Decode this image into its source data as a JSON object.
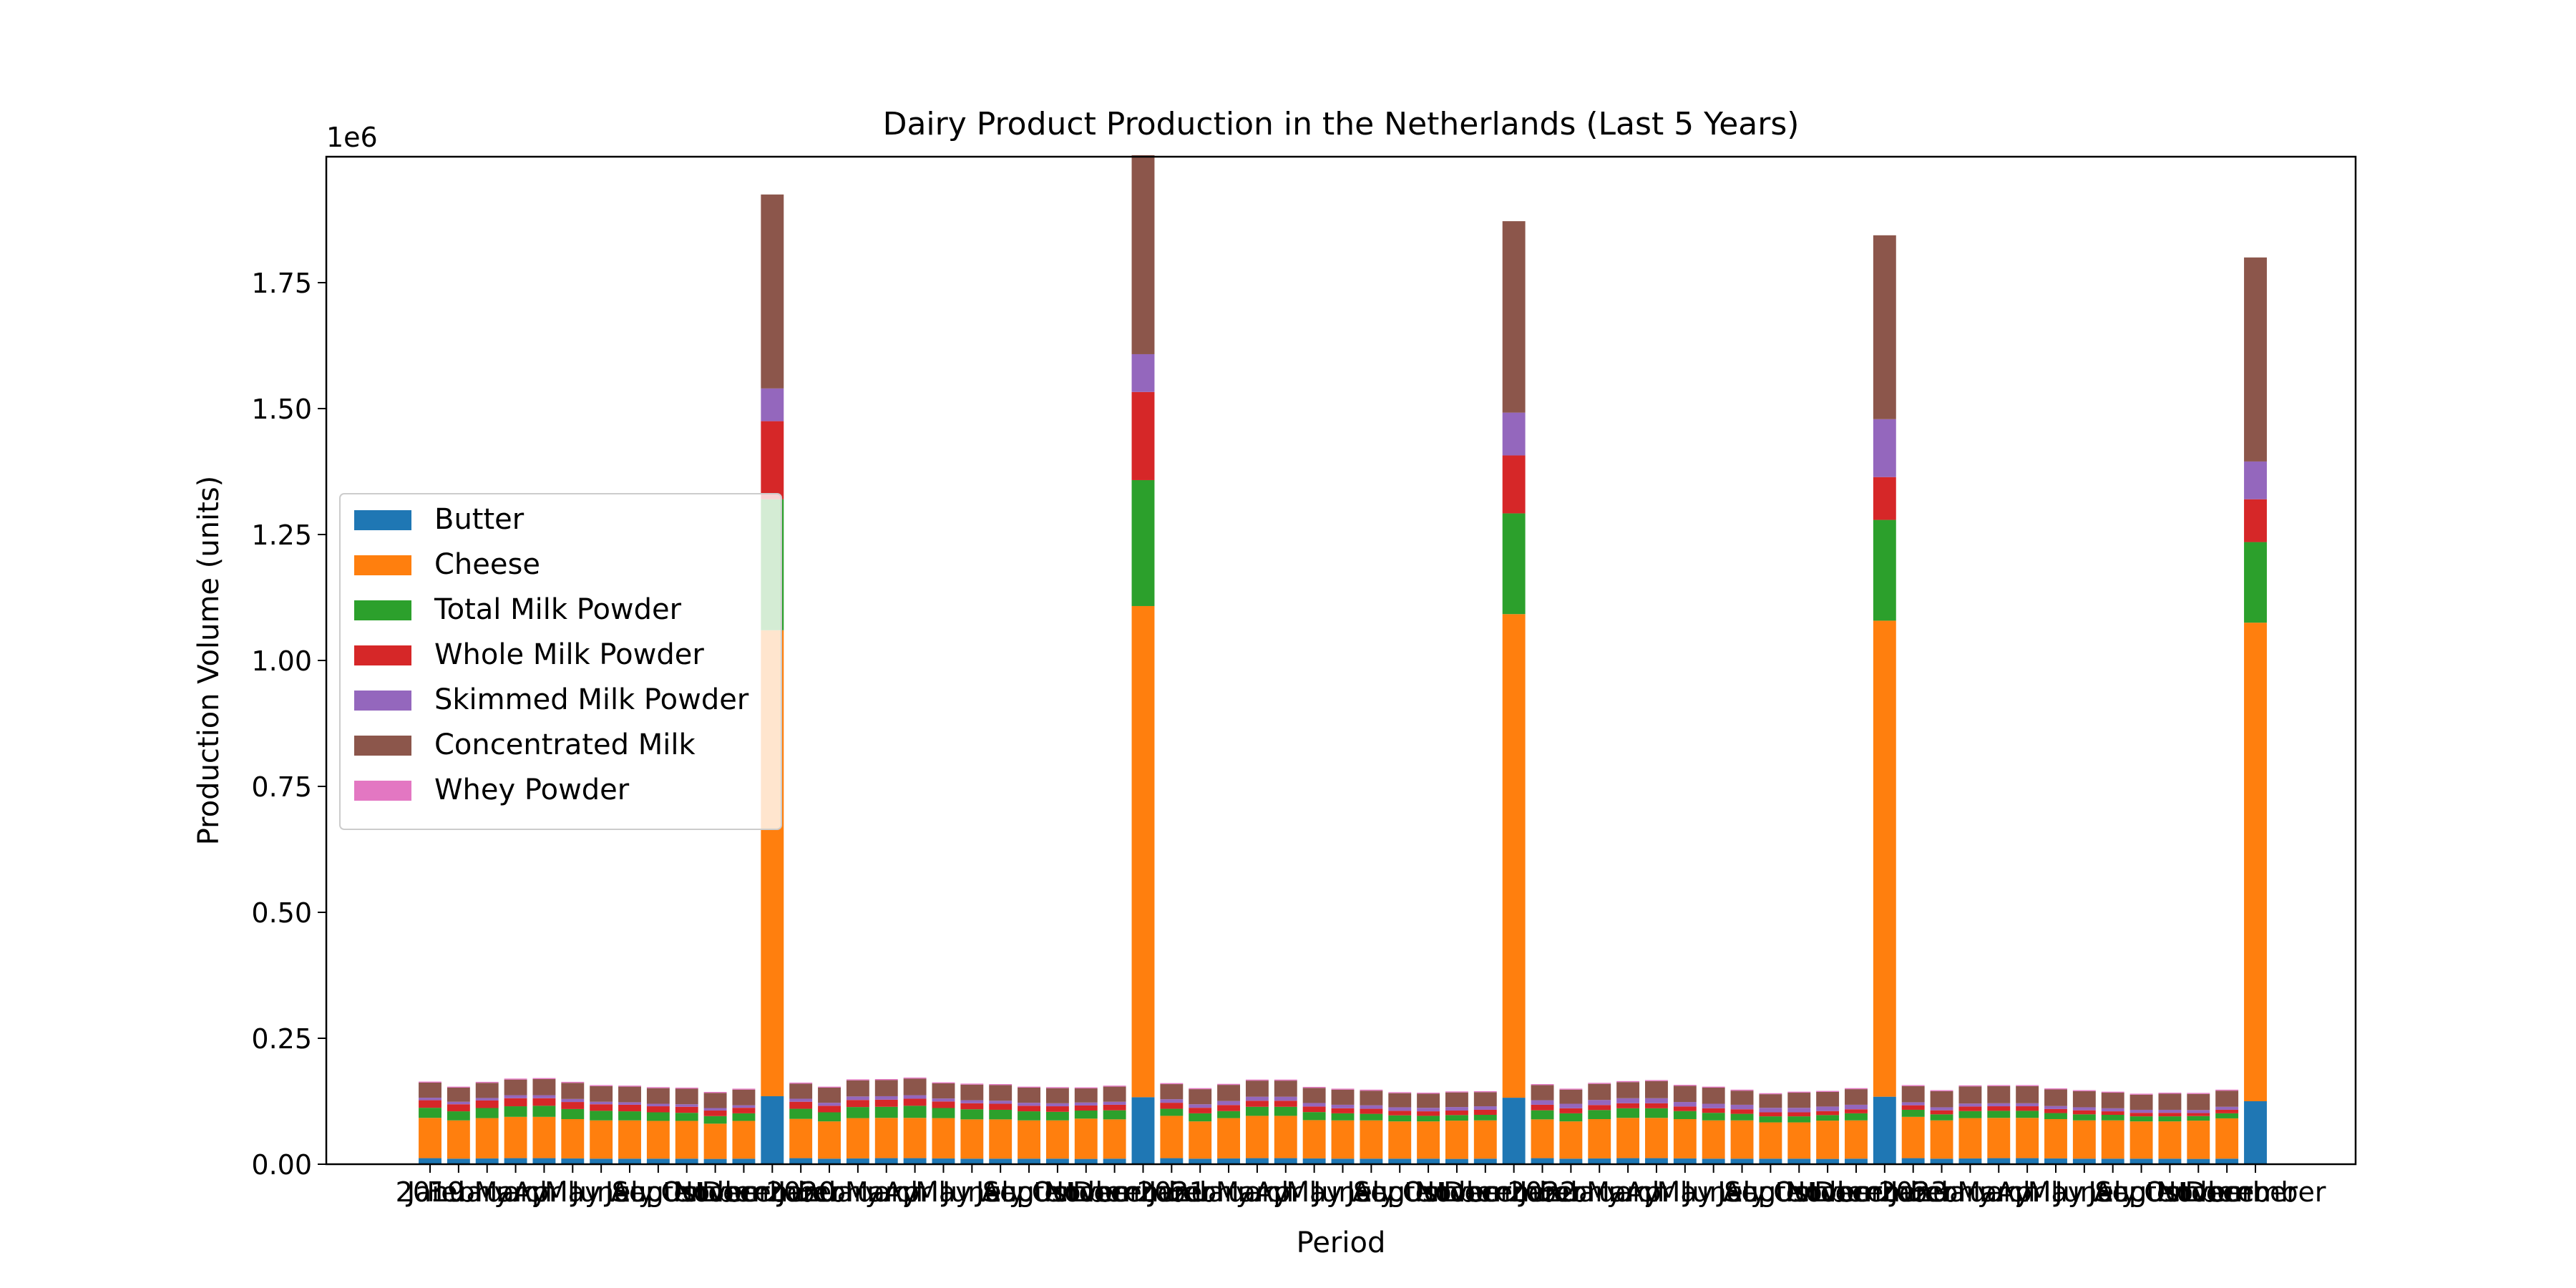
{
  "chart_data": {
    "type": "bar",
    "stacked": true,
    "title": "Dairy Product Production in the Netherlands (Last 5 Years)",
    "xlabel": "Period",
    "ylabel": "Production Volume (units)",
    "y_offset_label": "1e6",
    "ylim": [
      0,
      2000000
    ],
    "yticks": [
      0,
      250000,
      500000,
      750000,
      1000000,
      1250000,
      1500000,
      1750000
    ],
    "ytick_labels": [
      "0.00",
      "0.25",
      "0.50",
      "0.75",
      "1.00",
      "1.25",
      "1.50",
      "1.75"
    ],
    "xtick_labels": [
      "2019",
      "January",
      "February",
      "March",
      "April",
      "May",
      "June",
      "July",
      "August",
      "September",
      "October",
      "November",
      "December",
      "2020",
      "January",
      "February",
      "March",
      "April",
      "May",
      "June",
      "July",
      "August",
      "September",
      "October",
      "November",
      "December",
      "2021",
      "January",
      "February",
      "March",
      "April",
      "May",
      "June",
      "July",
      "August",
      "September",
      "October",
      "November",
      "December",
      "2022",
      "January",
      "February",
      "March",
      "April",
      "May",
      "June",
      "July",
      "August",
      "September",
      "October",
      "November",
      "December",
      "2023",
      "January",
      "February",
      "March",
      "April",
      "May",
      "June",
      "July",
      "August",
      "September",
      "October",
      "November",
      "December"
    ],
    "grid": false,
    "legend_position": "center-left",
    "series": [
      {
        "name": "Butter",
        "color": "#1f77b4",
        "values": [
          12000,
          11000,
          11500,
          12000,
          12000,
          11500,
          11000,
          11000,
          11000,
          11000,
          10500,
          11000,
          135000,
          12000,
          11000,
          11500,
          12000,
          12000,
          11500,
          11000,
          11000,
          11000,
          11000,
          10500,
          11000,
          133000,
          12000,
          11000,
          11500,
          12000,
          12000,
          11500,
          11000,
          11000,
          11000,
          11000,
          10500,
          11000,
          132000,
          12000,
          11000,
          11500,
          12000,
          12000,
          11500,
          11000,
          11000,
          11000,
          11000,
          10500,
          11000,
          134000,
          12000,
          11000,
          11500,
          12000,
          12000,
          11500,
          11000,
          11000,
          11000,
          11000,
          10500,
          11000,
          125000
        ]
      },
      {
        "name": "Cheese",
        "color": "#ff7f0e",
        "values": [
          80000,
          76000,
          80000,
          82000,
          82000,
          78000,
          76000,
          76000,
          75000,
          75000,
          70000,
          75000,
          925000,
          78000,
          74000,
          80000,
          80000,
          80000,
          80000,
          78000,
          78000,
          76000,
          76000,
          80000,
          78000,
          975000,
          84000,
          74000,
          80000,
          84000,
          84000,
          76000,
          76000,
          76000,
          74000,
          74000,
          76000,
          76000,
          960000,
          77000,
          74000,
          78000,
          80000,
          80000,
          78000,
          76000,
          76000,
          72000,
          72000,
          76000,
          76000,
          945000,
          82000,
          76000,
          80000,
          80000,
          80000,
          78000,
          76000,
          76000,
          74000,
          74000,
          76000,
          80000,
          950000
        ]
      },
      {
        "name": "Total Milk Powder",
        "color": "#2ca02c",
        "values": [
          20000,
          18000,
          20000,
          21000,
          22000,
          20000,
          19000,
          18000,
          17000,
          16000,
          15000,
          15000,
          260000,
          20000,
          18000,
          22000,
          22000,
          24000,
          20000,
          20000,
          19000,
          18000,
          17000,
          16000,
          18000,
          250000,
          14000,
          16000,
          14000,
          18000,
          18000,
          16000,
          14000,
          13000,
          12000,
          11000,
          11000,
          11000,
          200000,
          18000,
          16000,
          18000,
          19000,
          19000,
          16000,
          15000,
          13000,
          12000,
          12000,
          11000,
          14000,
          200000,
          14000,
          12000,
          14000,
          14000,
          14000,
          12000,
          12000,
          11000,
          10000,
          10000,
          9000,
          10000,
          160000
        ]
      },
      {
        "name": "Whole Milk Powder",
        "color": "#d62728",
        "values": [
          15000,
          14000,
          15000,
          16000,
          15000,
          14000,
          13000,
          13000,
          12000,
          12000,
          11000,
          11000,
          155000,
          14000,
          13000,
          14000,
          14000,
          14000,
          13000,
          12000,
          12000,
          11000,
          11000,
          10000,
          11000,
          175000,
          12000,
          11000,
          12000,
          12000,
          12000,
          11000,
          10000,
          10000,
          9000,
          9000,
          9000,
          10000,
          115000,
          11000,
          10000,
          10000,
          10000,
          10000,
          9000,
          9000,
          9000,
          8000,
          8000,
          8000,
          8000,
          85000,
          9000,
          8000,
          9000,
          9000,
          9000,
          8000,
          8000,
          7000,
          7000,
          7000,
          6000,
          7000,
          85000
        ]
      },
      {
        "name": "Skimmed Milk Powder",
        "color": "#9467bd",
        "values": [
          5000,
          5000,
          5000,
          6000,
          6000,
          6000,
          5000,
          5000,
          5000,
          5000,
          5000,
          5000,
          65000,
          6000,
          6000,
          7000,
          7000,
          7000,
          6000,
          6000,
          6000,
          6000,
          6000,
          6000,
          6000,
          75000,
          7000,
          7000,
          8000,
          8000,
          8000,
          7000,
          7000,
          7000,
          7000,
          7000,
          7000,
          7000,
          85000,
          9000,
          9000,
          10000,
          10000,
          10000,
          9000,
          9000,
          9000,
          9000,
          9000,
          9000,
          9000,
          115000,
          6000,
          6000,
          6000,
          6000,
          6000,
          6000,
          6000,
          6000,
          6000,
          6000,
          6000,
          6000,
          75000
        ]
      },
      {
        "name": "Concentrated Milk",
        "color": "#8c564b",
        "values": [
          30000,
          28000,
          30000,
          31000,
          32000,
          32000,
          31000,
          31000,
          31000,
          31000,
          30000,
          31000,
          385000,
          30000,
          30000,
          32000,
          32000,
          33000,
          30000,
          31000,
          31000,
          30000,
          30000,
          28000,
          30000,
          395000,
          30000,
          30000,
          32000,
          32000,
          32000,
          30000,
          30000,
          29000,
          28000,
          28000,
          29000,
          28000,
          380000,
          30000,
          28000,
          32000,
          32000,
          34000,
          32000,
          32000,
          28000,
          27000,
          30000,
          29000,
          31000,
          365000,
          32000,
          32000,
          34000,
          34000,
          34000,
          33000,
          32000,
          31000,
          30000,
          32000,
          32000,
          32000,
          405000
        ]
      },
      {
        "name": "Whey Powder",
        "color": "#e377c2",
        "values": [
          2000,
          2000,
          2000,
          2000,
          2000,
          2000,
          2000,
          2000,
          2000,
          2000,
          2000,
          2000,
          0,
          2000,
          2000,
          2000,
          2000,
          2000,
          2000,
          2000,
          2000,
          2000,
          2000,
          2000,
          2000,
          0,
          2000,
          2000,
          2000,
          2000,
          2000,
          2000,
          2000,
          2000,
          2000,
          2000,
          2000,
          2000,
          0,
          2000,
          2000,
          2000,
          2000,
          2000,
          2000,
          2000,
          2000,
          2000,
          2000,
          2000,
          2000,
          0,
          2000,
          2000,
          2000,
          2000,
          2000,
          2000,
          2000,
          2000,
          2000,
          2000,
          2000,
          2000,
          0
        ]
      }
    ]
  }
}
